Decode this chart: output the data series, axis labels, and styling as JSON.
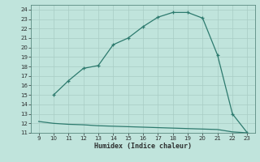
{
  "x_main": [
    10,
    11,
    12,
    13,
    14,
    15,
    16,
    17,
    18,
    19,
    20,
    21,
    22,
    23
  ],
  "y_main": [
    15,
    16.5,
    17.8,
    18.1,
    20.3,
    21.0,
    22.2,
    23.2,
    23.7,
    23.7,
    23.1,
    19.2,
    13.0,
    11.0
  ],
  "x_flat": [
    9,
    10,
    11,
    12,
    13,
    14,
    15,
    16,
    17,
    18,
    19,
    20,
    21,
    22,
    23
  ],
  "y_flat": [
    12.2,
    12.0,
    11.9,
    11.85,
    11.75,
    11.7,
    11.65,
    11.6,
    11.55,
    11.5,
    11.45,
    11.4,
    11.35,
    11.1,
    11.0
  ],
  "xlim": [
    8.5,
    23.5
  ],
  "ylim": [
    11,
    24.5
  ],
  "xticks": [
    9,
    10,
    11,
    12,
    13,
    14,
    15,
    16,
    17,
    18,
    19,
    20,
    21,
    22,
    23
  ],
  "yticks": [
    11,
    12,
    13,
    14,
    15,
    16,
    17,
    18,
    19,
    20,
    21,
    22,
    23,
    24
  ],
  "xlabel": "Humidex (Indice chaleur)",
  "line_color": "#2d7a6e",
  "bg_color": "#c0e4dc",
  "grid_color": "#a8ccc5",
  "marker": "+"
}
